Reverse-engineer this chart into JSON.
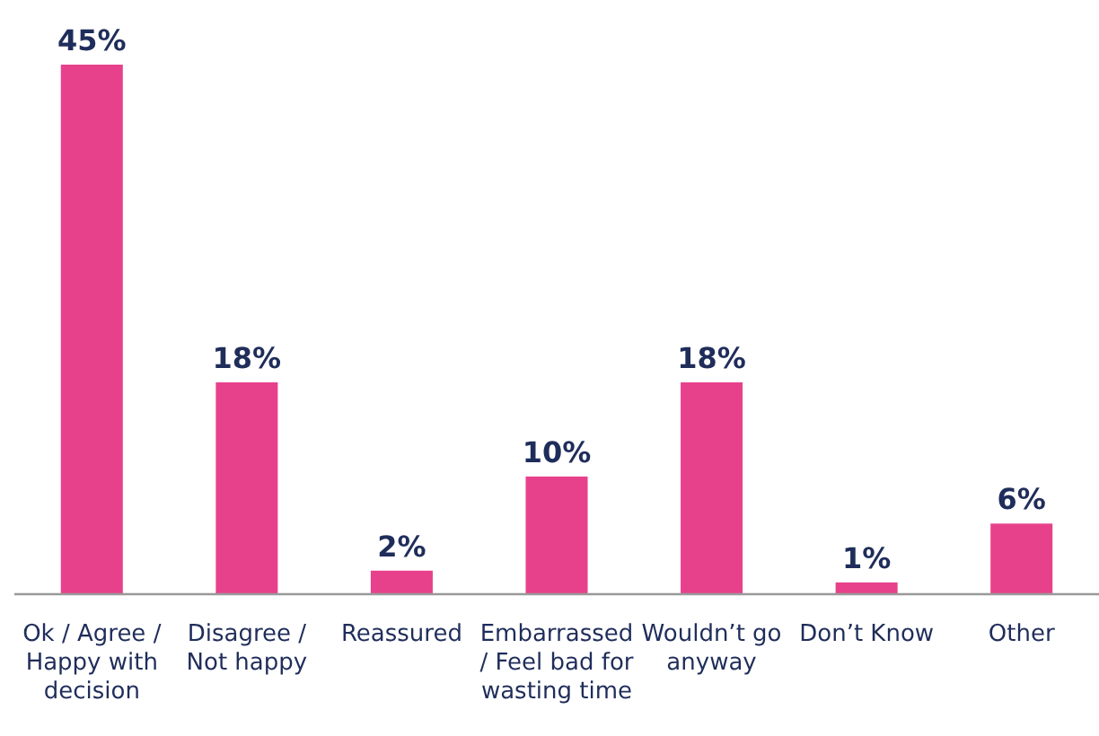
{
  "chart_data": {
    "type": "bar",
    "categories": [
      "Ok / Agree / Happy with decision",
      "Disagree / Not happy",
      "Reassured",
      "Embarrassed / Feel bad for wasting time",
      "Wouldn’t go anyway",
      "Don’t Know",
      "Other"
    ],
    "values": [
      45,
      18,
      2,
      10,
      18,
      1,
      6
    ],
    "value_labels": [
      "45%",
      "18%",
      "2%",
      "10%",
      "18%",
      "1%",
      "6%"
    ],
    "color": "#e8418c"
  }
}
